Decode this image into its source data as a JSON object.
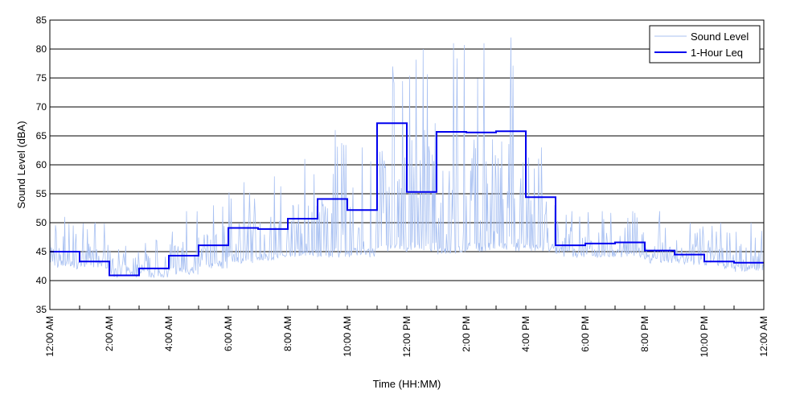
{
  "chart_data": {
    "type": "line",
    "title": "",
    "xlabel": "Time (HH:MM)",
    "ylabel": "Sound Level (dBA)",
    "xlim": [
      0,
      24
    ],
    "ylim": [
      35,
      85
    ],
    "grid": "horizontal",
    "legend_position": "top-right",
    "x_ticks": [
      {
        "value": 0,
        "label": "12:00 AM"
      },
      {
        "value": 2,
        "label": "2:00 AM"
      },
      {
        "value": 4,
        "label": "4:00 AM"
      },
      {
        "value": 6,
        "label": "6:00 AM"
      },
      {
        "value": 8,
        "label": "8:00 AM"
      },
      {
        "value": 10,
        "label": "10:00 AM"
      },
      {
        "value": 12,
        "label": "12:00 PM"
      },
      {
        "value": 14,
        "label": "2:00 PM"
      },
      {
        "value": 16,
        "label": "4:00 PM"
      },
      {
        "value": 18,
        "label": "6:00 PM"
      },
      {
        "value": 20,
        "label": "8:00 PM"
      },
      {
        "value": 22,
        "label": "10:00 PM"
      },
      {
        "value": 24,
        "label": "12:00 AM"
      }
    ],
    "y_ticks": [
      35,
      40,
      45,
      50,
      55,
      60,
      65,
      70,
      75,
      80,
      85
    ],
    "series": [
      {
        "name": "Sound Level",
        "color": "#a9c1f2",
        "style": "thin-line",
        "hourly_base": [
          42,
          42,
          40.5,
          40.5,
          41,
          42,
          43,
          43.5,
          44,
          44,
          44,
          45,
          45,
          44.5,
          45,
          45,
          45,
          44,
          44,
          44,
          43,
          42.5,
          42,
          41.5
        ],
        "hourly_peak": [
          51,
          50,
          46,
          47,
          52,
          53,
          57,
          58,
          61,
          66,
          63,
          77,
          80,
          81,
          81,
          82,
          63,
          52,
          52,
          52,
          52,
          50,
          50,
          50
        ]
      },
      {
        "name": "1-Hour Leq",
        "color": "#0000ee",
        "style": "step",
        "values": [
          45.0,
          43.3,
          40.9,
          42.1,
          44.3,
          46.1,
          49.1,
          48.9,
          50.7,
          54.1,
          52.2,
          67.2,
          55.3,
          65.7,
          65.6,
          65.8,
          54.4,
          46.1,
          46.4,
          46.6,
          45.2,
          44.5,
          43.3,
          43.1
        ]
      }
    ]
  }
}
